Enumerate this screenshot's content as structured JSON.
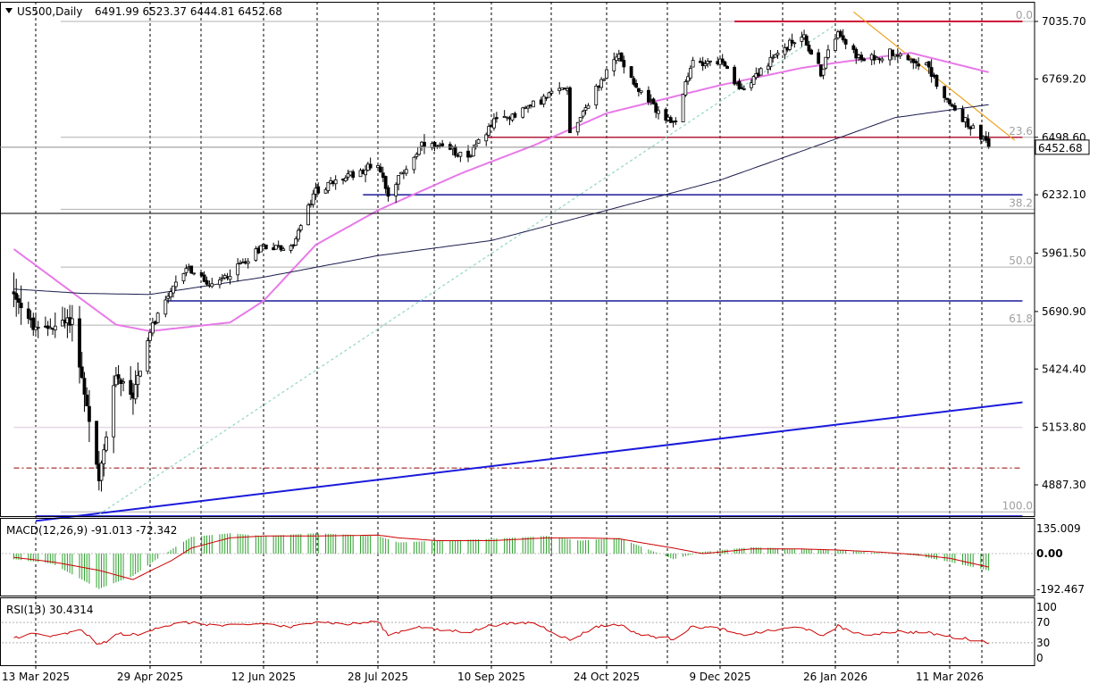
{
  "header": {
    "symbol_label": "US500,Daily",
    "ohlc_text": "6491.99 6523.37 6444.81 6452.68"
  },
  "price_axis": {
    "labels": [
      "7035.70",
      "6769.20",
      "6498.60",
      "6232.10",
      "5961.50",
      "5690.90",
      "5424.40",
      "5153.80",
      "4887.30"
    ],
    "label_values": [
      7035.7,
      6769.2,
      6498.6,
      6232.1,
      5961.5,
      5690.9,
      5424.4,
      5153.8,
      4887.3
    ],
    "current_price_label": "6452.68",
    "current_price": 6452.68
  },
  "time_axis": {
    "labels": [
      "13 Mar 2025",
      "29 Apr 2025",
      "12 Jun 2025",
      "28 Jul 2025",
      "10 Sep 2025",
      "24 Oct 2025",
      "9 Dec 2025",
      "26 Jan 2026",
      "11 Mar 2026"
    ]
  },
  "fibonacci": {
    "levels": [
      {
        "label": "0.0",
        "price": 7035.7
      },
      {
        "label": "23.6",
        "price": 6498.6
      },
      {
        "label": "38.2",
        "price": 6165.0
      },
      {
        "label": "50.0",
        "price": 5897.0
      },
      {
        "label": "61.8",
        "price": 5628.0
      },
      {
        "label": "100.0",
        "price": 4762.0
      }
    ]
  },
  "macd": {
    "label": "MACD(12,26,9) -91.013 -72.342",
    "axis_labels": [
      "135.009",
      "0.00",
      "-192.467"
    ],
    "axis_values": [
      135.009,
      0,
      -192.467
    ]
  },
  "rsi": {
    "label": "RSI(13) 30.4314",
    "axis_labels": [
      "100",
      "70",
      "30",
      "0"
    ],
    "axis_values": [
      100,
      70,
      30,
      0
    ]
  },
  "chart_data": {
    "type": "candlestick",
    "title": "US500,Daily",
    "x": [
      "2025-03-13",
      "2025-04-29",
      "2025-06-12",
      "2025-07-28",
      "2025-09-10",
      "2025-10-24",
      "2025-12-09",
      "2026-01-26",
      "2026-03-11"
    ],
    "price_keypoints": [
      [
        "2025-03-04",
        5780
      ],
      [
        "2025-03-13",
        5600
      ],
      [
        "2025-03-28",
        5650
      ],
      [
        "2025-04-08",
        4900
      ],
      [
        "2025-04-15",
        5400
      ],
      [
        "2025-04-22",
        5300
      ],
      [
        "2025-04-29",
        5600
      ],
      [
        "2025-05-13",
        5900
      ],
      [
        "2025-05-23",
        5800
      ],
      [
        "2025-06-12",
        6000
      ],
      [
        "2025-06-23",
        5980
      ],
      [
        "2025-07-03",
        6250
      ],
      [
        "2025-07-28",
        6380
      ],
      [
        "2025-08-01",
        6240
      ],
      [
        "2025-08-14",
        6460
      ],
      [
        "2025-09-02",
        6420
      ],
      [
        "2025-09-10",
        6560
      ],
      [
        "2025-09-26",
        6650
      ],
      [
        "2025-10-09",
        6740
      ],
      [
        "2025-10-10",
        6520
      ],
      [
        "2025-10-24",
        6800
      ],
      [
        "2025-10-29",
        6880
      ],
      [
        "2025-11-07",
        6700
      ],
      [
        "2025-11-20",
        6550
      ],
      [
        "2025-11-28",
        6850
      ],
      [
        "2025-12-09",
        6850
      ],
      [
        "2025-12-17",
        6720
      ],
      [
        "2026-01-12",
        6980
      ],
      [
        "2026-01-20",
        6800
      ],
      [
        "2026-01-27",
        7000
      ],
      [
        "2026-02-05",
        6850
      ],
      [
        "2026-02-18",
        6900
      ],
      [
        "2026-03-02",
        6830
      ],
      [
        "2026-03-11",
        6650
      ],
      [
        "2026-03-23",
        6500
      ],
      [
        "2026-03-26",
        6452.68
      ]
    ],
    "last_bar": {
      "open": 6491.99,
      "high": 6523.37,
      "low": 6444.81,
      "close": 6452.68
    },
    "moving_averages": [
      {
        "name": "pink",
        "color": "#e879e8",
        "keypoints": [
          [
            "2025-03-04",
            5980
          ],
          [
            "2025-04-15",
            5630
          ],
          [
            "2025-04-29",
            5600
          ],
          [
            "2025-05-30",
            5640
          ],
          [
            "2025-06-12",
            5740
          ],
          [
            "2025-07-03",
            6000
          ],
          [
            "2025-07-28",
            6160
          ],
          [
            "2025-08-29",
            6330
          ],
          [
            "2025-09-26",
            6460
          ],
          [
            "2025-10-24",
            6610
          ],
          [
            "2025-12-09",
            6740
          ],
          [
            "2026-01-12",
            6820
          ],
          [
            "2026-02-05",
            6860
          ],
          [
            "2026-02-24",
            6890
          ],
          [
            "2026-03-26",
            6800
          ]
        ]
      },
      {
        "name": "dark",
        "color": "#1c1c4e",
        "keypoints": [
          [
            "2025-03-04",
            5795
          ],
          [
            "2025-04-01",
            5775
          ],
          [
            "2025-04-29",
            5770
          ],
          [
            "2025-06-12",
            5850
          ],
          [
            "2025-07-28",
            5950
          ],
          [
            "2025-09-10",
            6020
          ],
          [
            "2025-10-24",
            6160
          ],
          [
            "2025-12-09",
            6300
          ],
          [
            "2026-01-26",
            6490
          ],
          [
            "2026-02-18",
            6590
          ],
          [
            "2026-03-26",
            6650
          ]
        ]
      }
    ],
    "horizontal_lines": [
      {
        "price": 7035.7,
        "color": "#d0103a",
        "from": "2025-12-15",
        "to": "2026-04-08"
      },
      {
        "price": 6498.6,
        "color": "#b01d3a",
        "from": "2025-09-08",
        "to": "2026-04-08"
      },
      {
        "price": 6232.1,
        "color": "#1a1a9a",
        "from": "2025-07-22",
        "to": "2026-04-08"
      },
      {
        "price": 5740,
        "color": "#1a1a9a",
        "from": "2025-05-05",
        "to": "2026-04-08"
      },
      {
        "price": 4742,
        "color": "#1a1adc",
        "from": "2025-03-13",
        "to": "2026-04-08"
      },
      {
        "price": 5153.8,
        "color": "#e6d6e6",
        "from": "2025-03-04",
        "to": "2026-04-08"
      },
      {
        "price": 4965,
        "color": "#b04848",
        "from": "2025-03-04",
        "to": "2026-04-08"
      }
    ],
    "trend_lines": [
      {
        "color": "#1a1adc",
        "from": [
          "2025-03-13",
          4720
        ],
        "to": [
          "2026-04-08",
          5270
        ]
      },
      {
        "color": "#f0a020",
        "from": [
          "2026-02-02",
          7080
        ],
        "to": [
          "2026-04-05",
          6485
        ]
      },
      {
        "color": "#90d4c4",
        "from": [
          "2025-04-08",
          4750
        ],
        "to": [
          "2026-01-26",
          7020
        ]
      }
    ],
    "ylim": [
      4720,
      7080
    ],
    "macd_keypoints": [
      [
        "2025-03-04",
        -30,
        -20
      ],
      [
        "2025-03-20",
        -55,
        -45
      ],
      [
        "2025-04-08",
        -190,
        -90
      ],
      [
        "2025-04-22",
        -120,
        -140
      ],
      [
        "2025-05-07",
        20,
        -40
      ],
      [
        "2025-05-15",
        90,
        30
      ],
      [
        "2025-05-30",
        110,
        85
      ],
      [
        "2025-06-12",
        95,
        95
      ],
      [
        "2025-07-03",
        110,
        95
      ],
      [
        "2025-07-28",
        95,
        100
      ],
      [
        "2025-08-05",
        60,
        85
      ],
      [
        "2025-08-20",
        70,
        70
      ],
      [
        "2025-09-10",
        80,
        70
      ],
      [
        "2025-10-01",
        95,
        85
      ],
      [
        "2025-10-14",
        70,
        85
      ],
      [
        "2025-10-29",
        85,
        80
      ],
      [
        "2025-11-20",
        -30,
        30
      ],
      [
        "2025-12-02",
        10,
        0
      ],
      [
        "2025-12-22",
        35,
        25
      ],
      [
        "2026-01-12",
        25,
        25
      ],
      [
        "2026-01-26",
        20,
        20
      ],
      [
        "2026-02-10",
        5,
        10
      ],
      [
        "2026-02-26",
        -10,
        -5
      ],
      [
        "2026-03-11",
        -45,
        -25
      ],
      [
        "2026-03-26",
        -91.013,
        -72.342
      ]
    ],
    "rsi_keypoints": [
      [
        "2025-03-04",
        40
      ],
      [
        "2025-03-12",
        48
      ],
      [
        "2025-03-20",
        42
      ],
      [
        "2025-04-01",
        55
      ],
      [
        "2025-04-08",
        25
      ],
      [
        "2025-04-16",
        48
      ],
      [
        "2025-04-25",
        45
      ],
      [
        "2025-05-01",
        60
      ],
      [
        "2025-05-13",
        70
      ],
      [
        "2025-05-28",
        63
      ],
      [
        "2025-06-12",
        68
      ],
      [
        "2025-06-23",
        60
      ],
      [
        "2025-07-03",
        73
      ],
      [
        "2025-07-15",
        66
      ],
      [
        "2025-07-28",
        72
      ],
      [
        "2025-08-01",
        45
      ],
      [
        "2025-08-12",
        62
      ],
      [
        "2025-08-20",
        55
      ],
      [
        "2025-09-02",
        52
      ],
      [
        "2025-09-10",
        65
      ],
      [
        "2025-09-26",
        70
      ],
      [
        "2025-10-10",
        35
      ],
      [
        "2025-10-20",
        62
      ],
      [
        "2025-10-29",
        66
      ],
      [
        "2025-11-07",
        45
      ],
      [
        "2025-11-20",
        38
      ],
      [
        "2025-11-28",
        62
      ],
      [
        "2025-12-09",
        58
      ],
      [
        "2025-12-17",
        45
      ],
      [
        "2026-01-12",
        62
      ],
      [
        "2026-01-20",
        42
      ],
      [
        "2026-01-27",
        63
      ],
      [
        "2026-02-05",
        45
      ],
      [
        "2026-02-18",
        52
      ],
      [
        "2026-03-02",
        50
      ],
      [
        "2026-03-11",
        42
      ],
      [
        "2026-03-20",
        36
      ],
      [
        "2026-03-26",
        30.4314
      ]
    ]
  }
}
